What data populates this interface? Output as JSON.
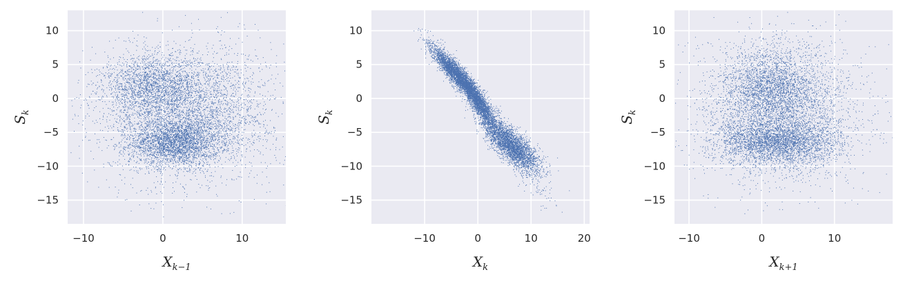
{
  "chart_data": [
    {
      "type": "scatter",
      "xlabel": "X",
      "xlabel_sub": "k−1",
      "ylabel": "S",
      "ylabel_sub": "k",
      "xlim": [
        -12,
        15.5
      ],
      "ylim": [
        -18.5,
        13
      ],
      "xticks": [
        -10,
        0,
        10
      ],
      "xtick_labels": [
        "−10",
        "0",
        "10"
      ],
      "yticks": [
        10,
        5,
        0,
        -5,
        -10,
        -15
      ],
      "ytick_labels": [
        "10",
        "5",
        "0",
        "−5",
        "−10",
        "−15"
      ],
      "grid": true,
      "point_color": "#4c72b0",
      "clusters": [
        {
          "cx": 1.5,
          "cy": -6.5,
          "sx": 2.8,
          "sy": 1.7,
          "rho": 0.0,
          "n": 2600
        },
        {
          "cx": -1.5,
          "cy": 1.8,
          "sx": 3.0,
          "sy": 2.2,
          "rho": 0.0,
          "n": 1600
        },
        {
          "cx": 3.5,
          "cy": -1.5,
          "sx": 5.0,
          "sy": 4.5,
          "rho": 0.0,
          "n": 3000
        },
        {
          "cx": 2.0,
          "cy": -3.0,
          "sx": 6.5,
          "sy": 5.5,
          "rho": 0.0,
          "n": 900
        }
      ]
    },
    {
      "type": "scatter",
      "xlabel": "X",
      "xlabel_sub": "k",
      "ylabel": "S",
      "ylabel_sub": "k",
      "xlim": [
        -20,
        21
      ],
      "ylim": [
        -18.5,
        13
      ],
      "xticks": [
        -10,
        0,
        10,
        20
      ],
      "xtick_labels": [
        "−10",
        "0",
        "10",
        "20"
      ],
      "yticks": [
        10,
        5,
        0,
        -5,
        -10,
        -15
      ],
      "ytick_labels": [
        "10",
        "5",
        "0",
        "−5",
        "−10",
        "−15"
      ],
      "grid": true,
      "point_color": "#4c72b0",
      "clusters": [
        {
          "cx": -4.0,
          "cy": 3.5,
          "sx": 2.3,
          "sy": 2.0,
          "rho": -0.92,
          "n": 3200
        },
        {
          "cx": 0.0,
          "cy": -0.5,
          "sx": 1.8,
          "sy": 2.2,
          "rho": -0.9,
          "n": 2200
        },
        {
          "cx": 6.5,
          "cy": -7.0,
          "sx": 2.5,
          "sy": 1.8,
          "rho": -0.75,
          "n": 2800
        },
        {
          "cx": 3.0,
          "cy": -4.0,
          "sx": 4.5,
          "sy": 4.8,
          "rho": -0.95,
          "n": 900
        }
      ]
    },
    {
      "type": "scatter",
      "xlabel": "X",
      "xlabel_sub": "k+1",
      "ylabel": "S",
      "ylabel_sub": "k",
      "xlim": [
        -12,
        18
      ],
      "ylim": [
        -18.5,
        13
      ],
      "xticks": [
        -10,
        0,
        10
      ],
      "xtick_labels": [
        "−10",
        "0",
        "10"
      ],
      "yticks": [
        10,
        5,
        0,
        -5,
        -10,
        -15
      ],
      "ytick_labels": [
        "10",
        "5",
        "0",
        "−5",
        "−10",
        "−15"
      ],
      "grid": true,
      "point_color": "#4c72b0",
      "clusters": [
        {
          "cx": 2.0,
          "cy": -6.5,
          "sx": 4.0,
          "sy": 1.6,
          "rho": 0.0,
          "n": 2600
        },
        {
          "cx": 1.0,
          "cy": 2.0,
          "sx": 3.0,
          "sy": 2.6,
          "rho": 0.0,
          "n": 1700
        },
        {
          "cx": 2.5,
          "cy": -2.0,
          "sx": 5.0,
          "sy": 4.8,
          "rho": 0.0,
          "n": 3000
        },
        {
          "cx": 3.0,
          "cy": -3.0,
          "sx": 6.5,
          "sy": 5.5,
          "rho": 0.0,
          "n": 700
        }
      ]
    }
  ]
}
